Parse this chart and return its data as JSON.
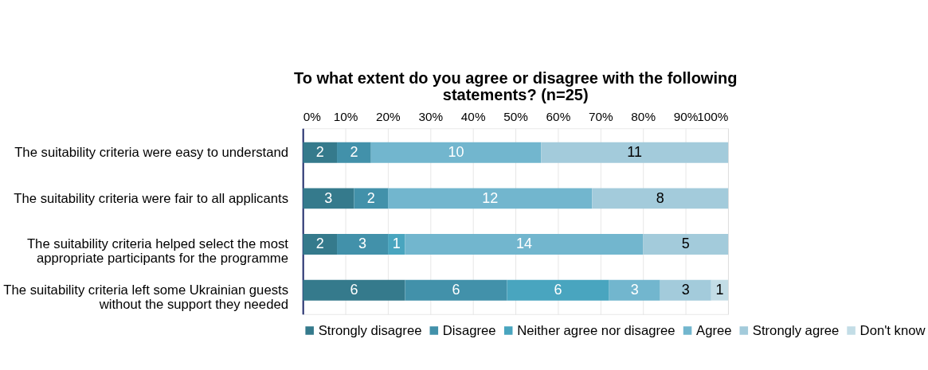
{
  "chart_data": {
    "type": "bar",
    "orientation": "horizontal",
    "stacked": true,
    "title": "To what extent do you agree or disagree with the following statements? (n=25)",
    "categories": [
      "The suitability criteria were easy to understand",
      "The suitability criteria were fair to all applicants",
      "The suitability criteria helped select the most\nappropriate participants for the programme",
      "The suitability criteria left some Ukrainian guests\nwithout the support they needed"
    ],
    "series": [
      {
        "name": "Strongly disagree",
        "color": "#357a8c",
        "values": [
          2,
          3,
          2,
          6
        ],
        "value_labels": [
          "2",
          "3",
          "2",
          "6"
        ]
      },
      {
        "name": "Disagree",
        "color": "#4291aa",
        "values": [
          2,
          2,
          3,
          6
        ],
        "value_labels": [
          "2",
          "2",
          "3",
          "6"
        ]
      },
      {
        "name": "Neither agree nor disagree",
        "color": "#49a5bf",
        "values": [
          0,
          0,
          1,
          6
        ],
        "value_labels": [
          null,
          null,
          "1",
          "6"
        ]
      },
      {
        "name": "Agree",
        "color": "#72b6ce",
        "values": [
          10,
          12,
          14,
          3
        ],
        "value_labels": [
          "10",
          "12",
          "14",
          "3"
        ]
      },
      {
        "name": "Strongly agree",
        "color": "#a3cbdb",
        "values": [
          11,
          8,
          5,
          3
        ],
        "value_labels": [
          "11",
          "8",
          "5",
          "3"
        ]
      },
      {
        "name": "Don't know",
        "color": "#c3dde6",
        "values": [
          0,
          0,
          0,
          1
        ],
        "value_labels": [
          null,
          null,
          null,
          "1"
        ]
      }
    ],
    "xlim": [
      0,
      25
    ],
    "x2lim": [
      0,
      100
    ],
    "x2ticks": [
      {
        "value": 0,
        "label": "0%"
      },
      {
        "value": 10,
        "label": "10%"
      },
      {
        "value": 20,
        "label": "20%"
      },
      {
        "value": 30,
        "label": "30%"
      },
      {
        "value": 40,
        "label": "40%"
      },
      {
        "value": 50,
        "label": "50%"
      },
      {
        "value": 60,
        "label": "60%"
      },
      {
        "value": 70,
        "label": "70%"
      },
      {
        "value": 80,
        "label": "80%"
      },
      {
        "value": 90,
        "label": "90%"
      },
      {
        "value": 100,
        "label": "100%"
      }
    ],
    "grid": "x",
    "legend": "bottom"
  }
}
